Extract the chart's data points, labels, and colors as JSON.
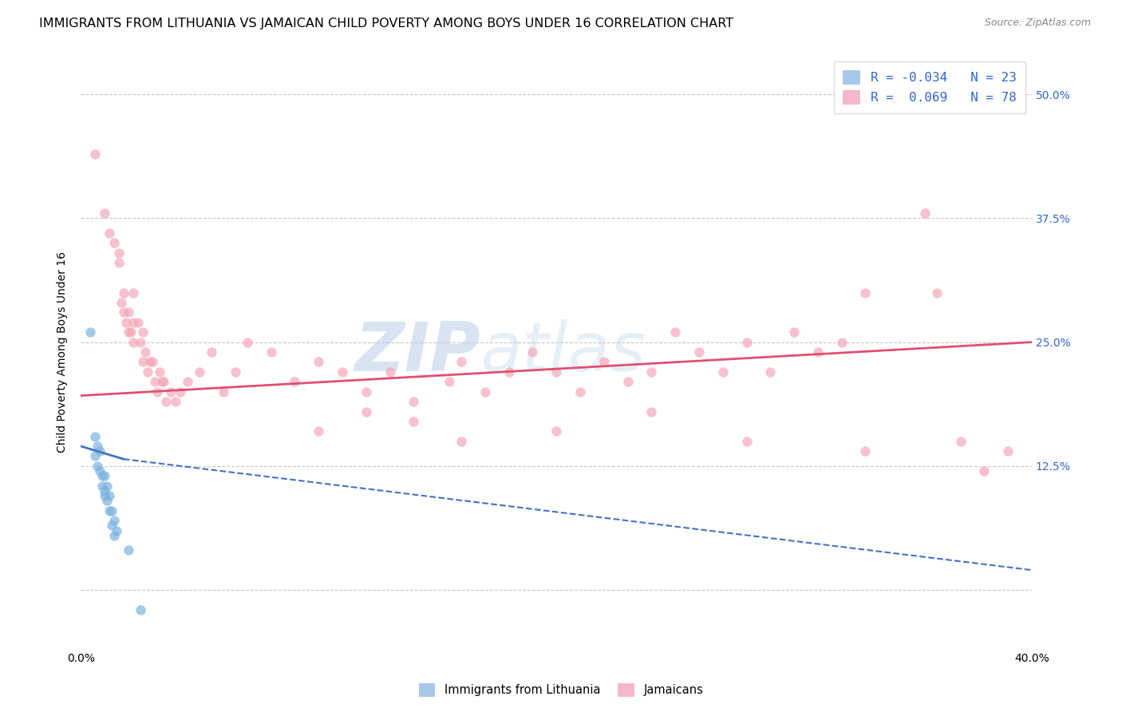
{
  "title": "IMMIGRANTS FROM LITHUANIA VS JAMAICAN CHILD POVERTY AMONG BOYS UNDER 16 CORRELATION CHART",
  "source": "Source: ZipAtlas.com",
  "ylabel": "Child Poverty Among Boys Under 16",
  "legend_entries_text": [
    "R = -0.034   N = 23",
    "R =  0.069   N = 78"
  ],
  "legend_labels": [
    "Immigrants from Lithuania",
    "Jamaicans"
  ],
  "watermark_part1": "ZIP",
  "watermark_part2": "atlas",
  "xlim": [
    0.0,
    0.4
  ],
  "ylim": [
    -0.06,
    0.54
  ],
  "xticks": [
    0.0,
    0.05,
    0.1,
    0.15,
    0.2,
    0.25,
    0.3,
    0.35,
    0.4
  ],
  "xticklabels": [
    "0.0%",
    "",
    "",
    "",
    "",
    "",
    "",
    "",
    "40.0%"
  ],
  "ytick_positions": [
    0.0,
    0.125,
    0.25,
    0.375,
    0.5
  ],
  "ytick_labels_right": [
    "",
    "12.5%",
    "25.0%",
    "37.5%",
    "50.0%"
  ],
  "scatter_blue": {
    "x": [
      0.004,
      0.006,
      0.006,
      0.007,
      0.007,
      0.008,
      0.008,
      0.009,
      0.009,
      0.01,
      0.01,
      0.01,
      0.011,
      0.011,
      0.012,
      0.012,
      0.013,
      0.013,
      0.014,
      0.014,
      0.015,
      0.02,
      0.025
    ],
    "y": [
      0.26,
      0.155,
      0.135,
      0.145,
      0.125,
      0.14,
      0.12,
      0.115,
      0.105,
      0.115,
      0.1,
      0.095,
      0.105,
      0.09,
      0.095,
      0.08,
      0.08,
      0.065,
      0.07,
      0.055,
      0.06,
      0.04,
      -0.02
    ]
  },
  "scatter_pink": {
    "x": [
      0.006,
      0.01,
      0.012,
      0.014,
      0.016,
      0.016,
      0.017,
      0.018,
      0.018,
      0.019,
      0.02,
      0.02,
      0.021,
      0.022,
      0.022,
      0.022,
      0.024,
      0.025,
      0.026,
      0.026,
      0.027,
      0.028,
      0.029,
      0.03,
      0.031,
      0.032,
      0.033,
      0.034,
      0.035,
      0.036,
      0.038,
      0.04,
      0.042,
      0.045,
      0.05,
      0.055,
      0.06,
      0.065,
      0.07,
      0.08,
      0.09,
      0.1,
      0.11,
      0.12,
      0.13,
      0.14,
      0.155,
      0.16,
      0.17,
      0.18,
      0.19,
      0.2,
      0.21,
      0.22,
      0.23,
      0.24,
      0.25,
      0.26,
      0.27,
      0.28,
      0.29,
      0.3,
      0.31,
      0.32,
      0.33,
      0.355,
      0.36,
      0.38,
      0.1,
      0.12,
      0.14,
      0.16,
      0.2,
      0.24,
      0.28,
      0.33,
      0.37,
      0.39
    ],
    "y": [
      0.44,
      0.38,
      0.36,
      0.35,
      0.34,
      0.33,
      0.29,
      0.3,
      0.28,
      0.27,
      0.28,
      0.26,
      0.26,
      0.3,
      0.27,
      0.25,
      0.27,
      0.25,
      0.26,
      0.23,
      0.24,
      0.22,
      0.23,
      0.23,
      0.21,
      0.2,
      0.22,
      0.21,
      0.21,
      0.19,
      0.2,
      0.19,
      0.2,
      0.21,
      0.22,
      0.24,
      0.2,
      0.22,
      0.25,
      0.24,
      0.21,
      0.23,
      0.22,
      0.2,
      0.22,
      0.19,
      0.21,
      0.23,
      0.2,
      0.22,
      0.24,
      0.22,
      0.2,
      0.23,
      0.21,
      0.22,
      0.26,
      0.24,
      0.22,
      0.25,
      0.22,
      0.26,
      0.24,
      0.25,
      0.3,
      0.38,
      0.3,
      0.12,
      0.16,
      0.18,
      0.17,
      0.15,
      0.16,
      0.18,
      0.15,
      0.14,
      0.15,
      0.14
    ]
  },
  "trendline_blue_solid": {
    "x": [
      0.0,
      0.018
    ],
    "y": [
      0.145,
      0.132
    ]
  },
  "trendline_blue_dashed": {
    "x": [
      0.018,
      0.4
    ],
    "y": [
      0.132,
      0.02
    ]
  },
  "trendline_pink": {
    "x": [
      0.0,
      0.4
    ],
    "y": [
      0.196,
      0.25
    ]
  },
  "blue_scatter_color": "#7db3e0",
  "pink_scatter_color": "#f4a8b8",
  "blue_line_color": "#4472c4",
  "pink_line_color": "#e05070",
  "background_color": "#ffffff",
  "grid_color": "#c8c8c8",
  "title_fontsize": 11.5,
  "axis_label_fontsize": 10,
  "tick_fontsize": 10
}
